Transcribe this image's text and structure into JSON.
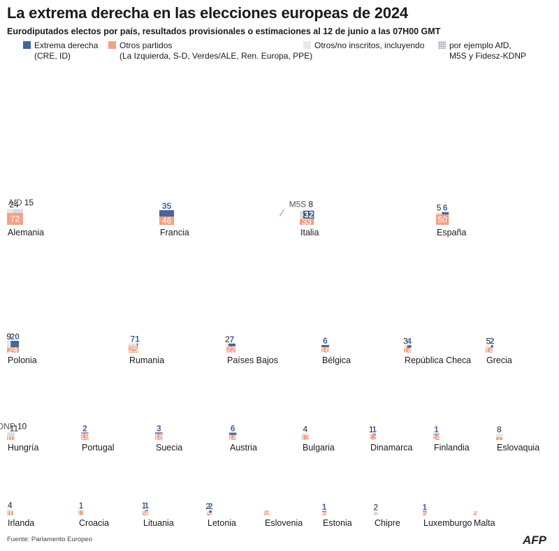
{
  "title": "La extrema derecha en las elecciones europeas de 2024",
  "subtitle": "Eurodiputados electos por país, resultados provisionales o estimaciones al 12 de junio a las 07H00 GMT",
  "legend": {
    "far_right": {
      "label": "Extrema derecha",
      "sub": "(CRE, ID)",
      "color": "#45659c"
    },
    "others": {
      "label": "Otros partidos",
      "sub": "(La Izquierda, S-D, Verdes/ALE, Ren. Europa, PPE)",
      "color": "#f2a286"
    },
    "non_inscrits": {
      "label": "Otros/no inscritos, incluyendo",
      "sub": "",
      "color": "#e6e8ea"
    },
    "example": {
      "label": "por ejemplo AfD,",
      "sub": "M5S y Fidesz-KDNP",
      "color": "#c9d3e1"
    }
  },
  "source": "Fuente: Parlamento Europeo",
  "agency": "AFP",
  "chart_data": {
    "type": "stacked-area-squares",
    "series": [
      "far_right",
      "others",
      "non_inscrits"
    ],
    "countries": [
      {
        "name": "Alemania",
        "far_right": 0,
        "others": 72,
        "non_inscrits": 24,
        "highlight": "AfD",
        "highlight_value": 15
      },
      {
        "name": "Francia",
        "far_right": 35,
        "others": 46,
        "non_inscrits": 0
      },
      {
        "name": "Italia",
        "far_right": 32,
        "others": 33,
        "non_inscrits": 11,
        "highlight": "M5S",
        "highlight_value": 8
      },
      {
        "name": "España",
        "far_right": 6,
        "others": 50,
        "non_inscrits": 5
      },
      {
        "name": "Polonia",
        "far_right": 20,
        "others": 24,
        "non_inscrits": 9
      },
      {
        "name": "Rumania",
        "far_right": 1,
        "others": 25,
        "non_inscrits": 7
      },
      {
        "name": "Países Bajos",
        "far_right": 7,
        "others": 22,
        "non_inscrits": 2
      },
      {
        "name": "Bélgica",
        "far_right": 6,
        "others": 16,
        "non_inscrits": 0
      },
      {
        "name": "República Checa",
        "far_right": 4,
        "others": 14,
        "non_inscrits": 3
      },
      {
        "name": "Grecia",
        "far_right": 2,
        "others": 14,
        "non_inscrits": 5
      },
      {
        "name": "Hungría",
        "far_right": 0,
        "others": 10,
        "non_inscrits": 11,
        "highlight": "Fidesz-KDNP",
        "highlight_value": 10
      },
      {
        "name": "Portugal",
        "far_right": 2,
        "others": 19,
        "non_inscrits": 0
      },
      {
        "name": "Suecia",
        "far_right": 3,
        "others": 18,
        "non_inscrits": 0
      },
      {
        "name": "Austria",
        "far_right": 6,
        "others": 14,
        "non_inscrits": 0
      },
      {
        "name": "Bulgaria",
        "far_right": 0,
        "others": 13,
        "non_inscrits": 4
      },
      {
        "name": "Dinamarca",
        "far_right": 1,
        "others": 13,
        "non_inscrits": 1
      },
      {
        "name": "Finlandia",
        "far_right": 1,
        "others": 14,
        "non_inscrits": 0
      },
      {
        "name": "Eslovaquia",
        "far_right": 0,
        "others": 7,
        "non_inscrits": 8
      },
      {
        "name": "Irlanda",
        "far_right": 0,
        "others": 10,
        "non_inscrits": 4
      },
      {
        "name": "Croacia",
        "far_right": 0,
        "others": 11,
        "non_inscrits": 1
      },
      {
        "name": "Lituania",
        "far_right": 1,
        "others": 9,
        "non_inscrits": 1
      },
      {
        "name": "Letonia",
        "far_right": 2,
        "others": 5,
        "non_inscrits": 2
      },
      {
        "name": "Eslovenia",
        "far_right": 0,
        "others": 9,
        "non_inscrits": 0
      },
      {
        "name": "Estonia",
        "far_right": 1,
        "others": 6,
        "non_inscrits": 0
      },
      {
        "name": "Chipre",
        "far_right": 0,
        "others": 4,
        "non_inscrits": 2
      },
      {
        "name": "Luxemburgo",
        "far_right": 1,
        "others": 5,
        "non_inscrits": 0
      },
      {
        "name": "Malta",
        "far_right": 0,
        "others": 6,
        "non_inscrits": 0
      }
    ]
  }
}
